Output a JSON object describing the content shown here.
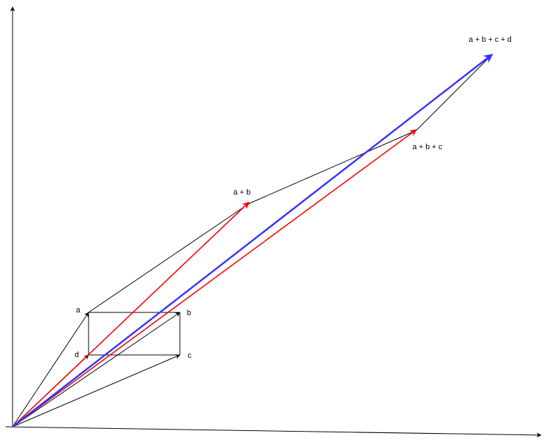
{
  "labels": {
    "a": "a",
    "b": "b",
    "c": "c",
    "d": "d",
    "a_plus_b": "a + b",
    "a_plus_b_plus_c": "a + b + c",
    "a_plus_b_plus_c_plus_d": "a + b + c + d"
  },
  "colors": {
    "axis": "#000000",
    "component_vector": "#000000",
    "partial_sum": "#ff0000",
    "resultant": "#3333ff"
  }
}
